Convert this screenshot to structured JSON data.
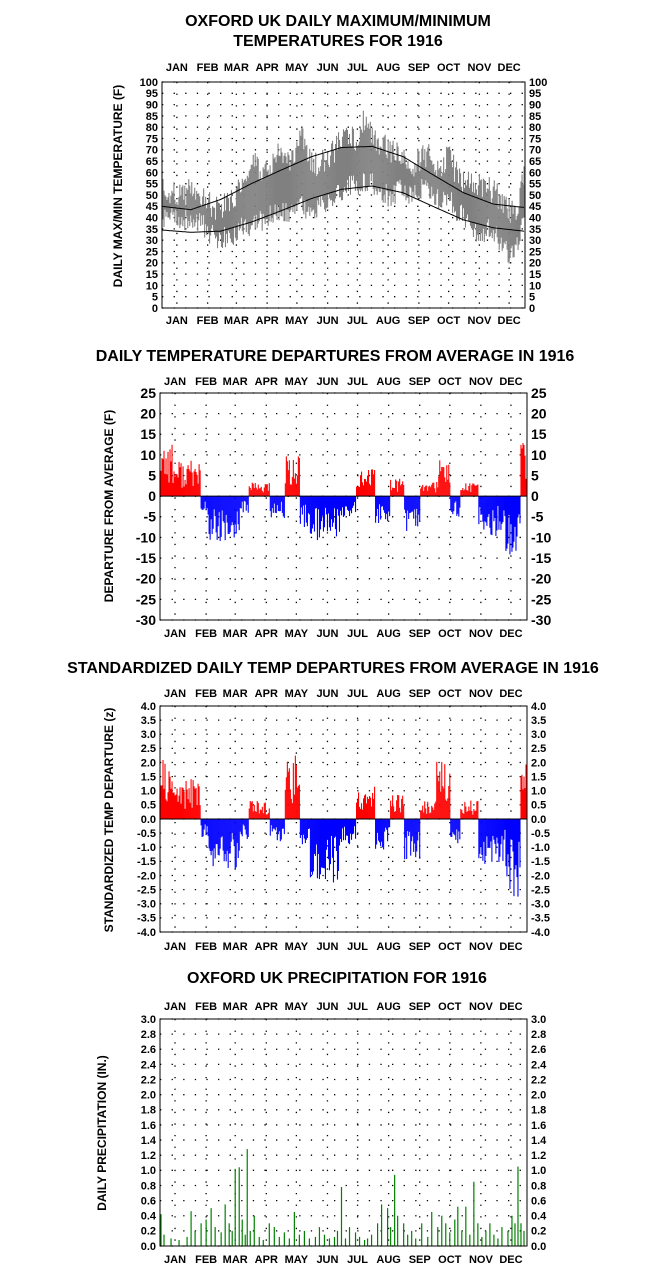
{
  "months": [
    "JAN",
    "FEB",
    "MAR",
    "APR",
    "MAY",
    "JUN",
    "JUL",
    "AUG",
    "SEP",
    "OCT",
    "NOV",
    "DEC"
  ],
  "colors": {
    "max_min": "#808080",
    "normal": "#000000",
    "positive": "#ff0000",
    "negative": "#0000ff",
    "precip": "#008000",
    "grid": "#000000"
  },
  "chart_data": [
    {
      "type": "line",
      "title": "OXFORD UK DAILY MAXIMUM/MINIMUM",
      "subtitle": "TEMPERATURES FOR 1916",
      "ylabel": "DAILY MAX/MIN TEMPERATURE (F)",
      "ylim": [
        0,
        100
      ],
      "yticks": [
        "0",
        "5",
        "10",
        "15",
        "20",
        "25",
        "30",
        "35",
        "40",
        "45",
        "50",
        "55",
        "60",
        "65",
        "70",
        "75",
        "80",
        "85",
        "90",
        "95",
        "100"
      ],
      "x_range_days": [
        1,
        366
      ],
      "grid": "dotted",
      "series": [],
      "normal_max_key": [
        [
          1,
          45
        ],
        [
          30,
          43.5
        ],
        [
          60,
          48
        ],
        [
          91,
          55
        ],
        [
          121,
          61
        ],
        [
          152,
          67
        ],
        [
          182,
          71
        ],
        [
          213,
          71.5
        ],
        [
          244,
          67
        ],
        [
          274,
          59
        ],
        [
          305,
          51
        ],
        [
          335,
          46
        ],
        [
          366,
          44.5
        ]
      ],
      "normal_min_key": [
        [
          1,
          34.5
        ],
        [
          30,
          33.5
        ],
        [
          60,
          34
        ],
        [
          91,
          38
        ],
        [
          121,
          43
        ],
        [
          152,
          48.5
        ],
        [
          182,
          52.5
        ],
        [
          213,
          54
        ],
        [
          244,
          51
        ],
        [
          274,
          45
        ],
        [
          305,
          39
        ],
        [
          335,
          35.5
        ],
        [
          366,
          34
        ]
      ],
      "daily_max_key": [
        [
          1,
          55
        ],
        [
          10,
          50
        ],
        [
          20,
          51
        ],
        [
          30,
          52
        ],
        [
          40,
          51
        ],
        [
          50,
          45
        ],
        [
          60,
          44
        ],
        [
          70,
          47
        ],
        [
          80,
          52
        ],
        [
          90,
          57
        ],
        [
          95,
          65
        ],
        [
          100,
          58
        ],
        [
          110,
          61
        ],
        [
          117,
          70
        ],
        [
          125,
          66
        ],
        [
          133,
          65
        ],
        [
          141,
          79
        ],
        [
          150,
          65
        ],
        [
          160,
          64
        ],
        [
          170,
          66
        ],
        [
          180,
          73
        ],
        [
          190,
          75
        ],
        [
          200,
          73
        ],
        [
          205,
          84
        ],
        [
          210,
          78
        ],
        [
          215,
          74
        ],
        [
          225,
          73
        ],
        [
          235,
          68
        ],
        [
          245,
          67
        ],
        [
          255,
          64
        ],
        [
          262,
          66
        ],
        [
          270,
          68
        ],
        [
          280,
          63
        ],
        [
          290,
          67
        ],
        [
          300,
          58
        ],
        [
          310,
          55
        ],
        [
          320,
          54
        ],
        [
          330,
          53
        ],
        [
          340,
          49
        ],
        [
          350,
          43
        ],
        [
          360,
          45
        ],
        [
          366,
          60
        ]
      ],
      "daily_min_key": [
        [
          1,
          38
        ],
        [
          10,
          40
        ],
        [
          20,
          39
        ],
        [
          30,
          40
        ],
        [
          40,
          38
        ],
        [
          50,
          32
        ],
        [
          60,
          31
        ],
        [
          70,
          32
        ],
        [
          80,
          35
        ],
        [
          90,
          36
        ],
        [
          100,
          38
        ],
        [
          110,
          41
        ],
        [
          120,
          44
        ],
        [
          130,
          42
        ],
        [
          140,
          47
        ],
        [
          150,
          42
        ],
        [
          160,
          45
        ],
        [
          170,
          47
        ],
        [
          180,
          50
        ],
        [
          190,
          54
        ],
        [
          200,
          55
        ],
        [
          210,
          57
        ],
        [
          220,
          53
        ],
        [
          230,
          49
        ],
        [
          240,
          52
        ],
        [
          250,
          50
        ],
        [
          260,
          52
        ],
        [
          270,
          54
        ],
        [
          280,
          48
        ],
        [
          290,
          49
        ],
        [
          300,
          42
        ],
        [
          310,
          39
        ],
        [
          320,
          33
        ],
        [
          330,
          35
        ],
        [
          340,
          31
        ],
        [
          350,
          24
        ],
        [
          360,
          28
        ],
        [
          366,
          40
        ]
      ],
      "data_status": "values read off the plot as approximate seasonal key points"
    },
    {
      "type": "bar",
      "title": "DAILY TEMPERATURE DEPARTURES FROM AVERAGE IN 1916",
      "ylabel": "DEPARTURE FROM AVERAGE (F)",
      "ylim": [
        -30,
        25
      ],
      "yticks": [
        "-30",
        "-25",
        "-20",
        "-15",
        "-10",
        "-5",
        "0",
        "5",
        "10",
        "15",
        "20",
        "25"
      ],
      "x_range_days": [
        1,
        366
      ],
      "grid": "dotted",
      "series": [],
      "runs": [
        [
          1,
          13,
          13
        ],
        [
          14,
          41,
          8
        ],
        [
          42,
          48,
          -4
        ],
        [
          49,
          80,
          -10
        ],
        [
          81,
          89,
          -4
        ],
        [
          90,
          110,
          3
        ],
        [
          111,
          125,
          -5
        ],
        [
          126,
          140,
          9
        ],
        [
          141,
          150,
          -7
        ],
        [
          151,
          180,
          -10
        ],
        [
          181,
          196,
          -5
        ],
        [
          197,
          215,
          6
        ],
        [
          216,
          230,
          -6
        ],
        [
          231,
          244,
          4
        ],
        [
          245,
          260,
          -8
        ],
        [
          261,
          276,
          3
        ],
        [
          277,
          290,
          8
        ],
        [
          291,
          300,
          -5
        ],
        [
          301,
          318,
          3
        ],
        [
          319,
          345,
          -9
        ],
        [
          346,
          360,
          -15
        ],
        [
          361,
          366,
          12
        ]
      ],
      "data_status": "values read off the plot as approximate runs [start_day, end_day, departure_F]"
    },
    {
      "type": "bar",
      "title": "STANDARDIZED DAILY TEMP DEPARTURES FROM AVERAGE IN 1916",
      "ylabel": "STANDARDIZED TEMP DEPARTURE (z)",
      "ylim": [
        -4.0,
        4.0
      ],
      "yticks": [
        "-4.0",
        "-3.5",
        "-3.0",
        "-2.5",
        "-2.0",
        "-1.5",
        "-1.0",
        "-0.5",
        "0.0",
        "0.5",
        "1.0",
        "1.5",
        "2.0",
        "2.5",
        "3.0",
        "3.5",
        "4.0"
      ],
      "x_range_days": [
        1,
        366
      ],
      "grid": "dotted",
      "series": [],
      "runs": [
        [
          1,
          13,
          1.9
        ],
        [
          14,
          41,
          1.3
        ],
        [
          42,
          48,
          -0.6
        ],
        [
          49,
          80,
          -1.8
        ],
        [
          81,
          89,
          -0.7
        ],
        [
          90,
          110,
          0.6
        ],
        [
          111,
          125,
          -0.8
        ],
        [
          126,
          140,
          2.2
        ],
        [
          141,
          150,
          -1.1
        ],
        [
          151,
          180,
          -2.2
        ],
        [
          181,
          196,
          -0.9
        ],
        [
          197,
          215,
          1.2
        ],
        [
          216,
          230,
          -1.0
        ],
        [
          231,
          244,
          0.8
        ],
        [
          245,
          260,
          -1.3
        ],
        [
          261,
          276,
          0.6
        ],
        [
          277,
          290,
          2.0
        ],
        [
          291,
          300,
          -0.8
        ],
        [
          301,
          318,
          0.6
        ],
        [
          319,
          345,
          -1.5
        ],
        [
          346,
          360,
          -2.5
        ],
        [
          361,
          366,
          1.8
        ]
      ],
      "data_status": "values read off the plot as approximate runs [start_day, end_day, z]"
    },
    {
      "type": "bar",
      "title": "OXFORD UK PRECIPITATION FOR 1916",
      "ylabel": "DAILY PRECIPITATION (IN.)",
      "ylim": [
        0.0,
        3.0
      ],
      "yticks": [
        "0.0",
        "0.2",
        "0.4",
        "0.6",
        "0.8",
        "1.0",
        "1.2",
        "1.4",
        "1.6",
        "1.8",
        "2.0",
        "2.2",
        "2.4",
        "2.6",
        "2.8",
        "3.0"
      ],
      "x_range_days": [
        1,
        366
      ],
      "grid": "dotted",
      "series": [],
      "events": [
        [
          2,
          0.42
        ],
        [
          5,
          0.15
        ],
        [
          12,
          0.1
        ],
        [
          20,
          0.08
        ],
        [
          28,
          0.12
        ],
        [
          32,
          0.46
        ],
        [
          36,
          0.2
        ],
        [
          42,
          0.3
        ],
        [
          47,
          0.35
        ],
        [
          52,
          0.5
        ],
        [
          56,
          0.25
        ],
        [
          62,
          0.18
        ],
        [
          66,
          0.55
        ],
        [
          70,
          0.3
        ],
        [
          73,
          0.2
        ],
        [
          76,
          1.02
        ],
        [
          80,
          1.04
        ],
        [
          83,
          0.35
        ],
        [
          86,
          0.15
        ],
        [
          88,
          1.28
        ],
        [
          91,
          0.2
        ],
        [
          95,
          0.4
        ],
        [
          100,
          0.12
        ],
        [
          104,
          0.08
        ],
        [
          110,
          0.3
        ],
        [
          115,
          0.25
        ],
        [
          120,
          0.12
        ],
        [
          125,
          0.18
        ],
        [
          130,
          0.1
        ],
        [
          135,
          0.45
        ],
        [
          140,
          0.15
        ],
        [
          145,
          0.2
        ],
        [
          150,
          0.1
        ],
        [
          156,
          0.12
        ],
        [
          160,
          0.25
        ],
        [
          165,
          0.15
        ],
        [
          170,
          0.1
        ],
        [
          175,
          0.12
        ],
        [
          178,
          0.2
        ],
        [
          182,
          0.78
        ],
        [
          186,
          0.1
        ],
        [
          190,
          0.25
        ],
        [
          196,
          0.18
        ],
        [
          200,
          0.12
        ],
        [
          205,
          0.08
        ],
        [
          208,
          0.1
        ],
        [
          212,
          0.15
        ],
        [
          218,
          0.3
        ],
        [
          222,
          0.55
        ],
        [
          228,
          0.5
        ],
        [
          231,
          0.25
        ],
        [
          235,
          0.94
        ],
        [
          238,
          0.4
        ],
        [
          244,
          0.3
        ],
        [
          248,
          0.15
        ],
        [
          252,
          0.2
        ],
        [
          256,
          0.1
        ],
        [
          262,
          0.3
        ],
        [
          268,
          0.12
        ],
        [
          272,
          0.45
        ],
        [
          278,
          0.25
        ],
        [
          282,
          0.4
        ],
        [
          286,
          0.3
        ],
        [
          290,
          0.18
        ],
        [
          295,
          0.35
        ],
        [
          298,
          0.52
        ],
        [
          302,
          0.2
        ],
        [
          306,
          0.52
        ],
        [
          310,
          0.15
        ],
        [
          314,
          0.85
        ],
        [
          318,
          0.3
        ],
        [
          322,
          0.12
        ],
        [
          326,
          0.2
        ],
        [
          330,
          0.3
        ],
        [
          334,
          0.15
        ],
        [
          338,
          0.1
        ],
        [
          342,
          0.25
        ],
        [
          348,
          0.2
        ],
        [
          352,
          0.4
        ],
        [
          355,
          0.3
        ],
        [
          358,
          1.05
        ],
        [
          361,
          0.3
        ],
        [
          364,
          0.2
        ]
      ],
      "data_status": "values read off the plot as approximate [day, inches] events"
    }
  ]
}
